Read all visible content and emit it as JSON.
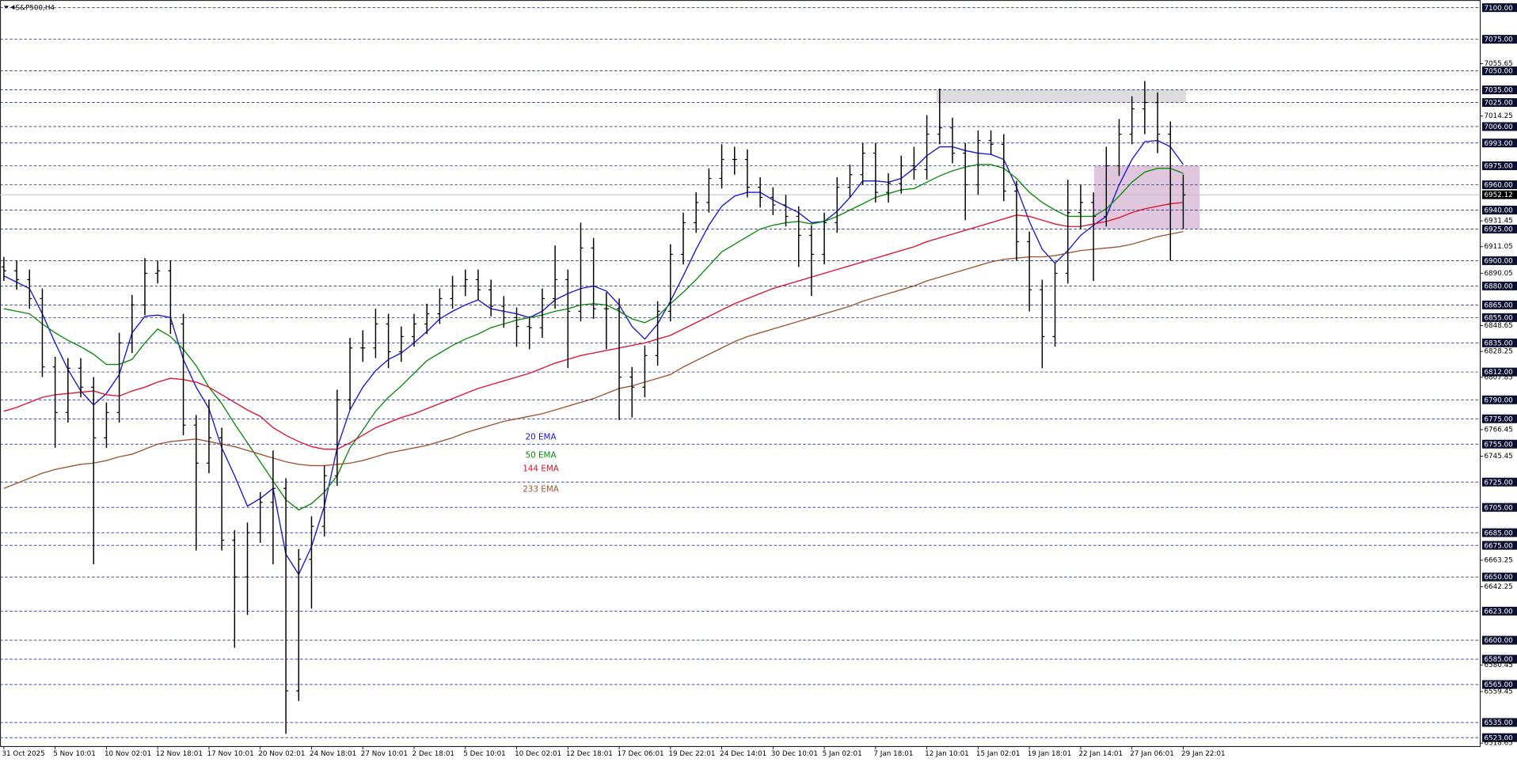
{
  "chart_data": {
    "type": "ohlc",
    "title": "S&P500,H4",
    "bar_color": "#000000",
    "categories": [
      "31 Oct 2025",
      null,
      null,
      null,
      "5 Nov 10:01",
      null,
      null,
      null,
      "10 Nov 02:01",
      null,
      null,
      null,
      "12 Nov 18:01",
      null,
      null,
      null,
      "17 Nov 10:01",
      null,
      null,
      null,
      "20 Nov 02:01",
      null,
      null,
      null,
      "24 Nov 18:01",
      null,
      null,
      null,
      "27 Nov 10:01",
      null,
      null,
      null,
      "2 Dec 18:01",
      null,
      null,
      null,
      "5 Dec 10:01",
      null,
      null,
      null,
      "10 Dec 02:01",
      null,
      null,
      null,
      "12 Dec 18:01",
      null,
      null,
      null,
      "17 Dec 06:01",
      null,
      null,
      null,
      "19 Dec 22:01",
      null,
      null,
      null,
      "24 Dec 14:01",
      null,
      null,
      null,
      "30 Dec 10:01",
      null,
      null,
      null,
      "5 Jan 02:01",
      null,
      null,
      null,
      "7 Jan 18:01",
      null,
      null,
      null,
      "12 Jan 10:01",
      null,
      null,
      null,
      "15 Jan 02:01",
      null,
      null,
      null,
      "19 Jan 18:01",
      null,
      null,
      null,
      "22 Jan 14:01",
      null,
      null,
      null,
      "27 Jan 06:01",
      null,
      null,
      null,
      "29 Jan 22:01"
    ],
    "open": [
      6895,
      6892,
      6885,
      6870,
      6816,
      6780,
      6815,
      6800,
      6760,
      6780,
      6835,
      6865,
      6890,
      6892,
      6850,
      6770,
      6740,
      6760,
      6679,
      6650,
      6685,
      6709,
      6720,
      6560,
      6664,
      6690,
      6730,
      6790,
      6831,
      6831,
      6850,
      6828,
      6840,
      6850,
      6858,
      6870,
      6880,
      6885,
      6877,
      6864,
      6855,
      6848,
      6847,
      6870,
      6885,
      6860,
      6910,
      6862,
      6862,
      6808,
      6800,
      6825,
      6860,
      6905,
      6930,
      6946,
      6965,
      6980,
      6980,
      6958,
      6950,
      6944,
      6935,
      6920,
      6905,
      6930,
      6958,
      6968,
      6985,
      6954,
      6961,
      6975,
      6972,
      7000,
      7005,
      6985,
      6960,
      6995,
      6992,
      6955,
      6915,
      6877,
      6840,
      6890,
      6938,
      6946,
      6935,
      6975,
      7000,
      7020,
      7025,
      7000,
      6960
    ],
    "high": [
      6903,
      6900,
      6893,
      6878,
      6824,
      6823,
      6823,
      6808,
      6788,
      6843,
      6873,
      6902,
      6900,
      6900,
      6858,
      6778,
      6790,
      6768,
      6687,
      6693,
      6717,
      6750,
      6728,
      6672,
      6698,
      6738,
      6798,
      6839,
      6845,
      6862,
      6858,
      6848,
      6858,
      6866,
      6878,
      6888,
      6893,
      6893,
      6885,
      6872,
      6863,
      6856,
      6878,
      6912,
      6893,
      6930,
      6918,
      6875,
      6870,
      6816,
      6833,
      6868,
      6913,
      6938,
      6954,
      6973,
      6992,
      6990,
      6988,
      6966,
      6958,
      6952,
      6943,
      6928,
      6938,
      6966,
      6976,
      6993,
      6993,
      6969,
      6983,
      6990,
      7015,
      7036,
      7013,
      6993,
      7003,
      7003,
      7000,
      6963,
      6923,
      6885,
      6898,
      6964,
      6960,
      6954,
      6990,
      7012,
      7030,
      7042,
      7033,
      7010,
      6968
    ],
    "low": [
      6884,
      6877,
      6862,
      6808,
      6752,
      6772,
      6792,
      6660,
      6752,
      6772,
      6827,
      6857,
      6882,
      6842,
      6762,
      6671,
      6732,
      6671,
      6594,
      6620,
      6677,
      6660,
      6526,
      6552,
      6625,
      6682,
      6722,
      6782,
      6820,
      6823,
      6815,
      6820,
      6832,
      6842,
      6850,
      6862,
      6872,
      6869,
      6856,
      6847,
      6832,
      6830,
      6839,
      6862,
      6815,
      6852,
      6854,
      6830,
      6774,
      6776,
      6792,
      6817,
      6852,
      6897,
      6922,
      6938,
      6957,
      6968,
      6950,
      6942,
      6936,
      6927,
      6895,
      6872,
      6897,
      6922,
      6950,
      6960,
      6946,
      6946,
      6953,
      6964,
      6964,
      6992,
      6977,
      6932,
      6952,
      6984,
      6947,
      6900,
      6860,
      6815,
      6832,
      6882,
      6925,
      6884,
      6927,
      6967,
      6992,
      7000,
      6985,
      6900,
      6925
    ],
    "close": [
      6892,
      6885,
      6870,
      6816,
      6780,
      6815,
      6800,
      6760,
      6780,
      6835,
      6865,
      6890,
      6892,
      6850,
      6770,
      6740,
      6760,
      6679,
      6650,
      6685,
      6709,
      6720,
      6560,
      6664,
      6690,
      6730,
      6790,
      6831,
      6831,
      6850,
      6828,
      6840,
      6850,
      6858,
      6870,
      6880,
      6885,
      6877,
      6864,
      6855,
      6848,
      6847,
      6870,
      6885,
      6860,
      6910,
      6862,
      6862,
      6808,
      6800,
      6825,
      6860,
      6905,
      6930,
      6946,
      6965,
      6980,
      6980,
      6958,
      6950,
      6944,
      6935,
      6920,
      6905,
      6930,
      6958,
      6968,
      6985,
      6954,
      6961,
      6975,
      6972,
      7000,
      7005,
      6985,
      6960,
      6995,
      6992,
      6955,
      6915,
      6877,
      6840,
      6890,
      6938,
      6946,
      6935,
      6975,
      7000,
      7020,
      7025,
      7000,
      6960,
      6952
    ],
    "series": [
      {
        "name": "20 EMA",
        "color": "#1414d8",
        "values": [
          6888,
          6883,
          6878,
          6858,
          6835,
          6814,
          6797,
          6786,
          6795,
          6810,
          6843,
          6856,
          6857,
          6855,
          6822,
          6800,
          6783,
          6752,
          6730,
          6706,
          6712,
          6720,
          6668,
          6652,
          6674,
          6706,
          6752,
          6782,
          6800,
          6813,
          6822,
          6827,
          6835,
          6844,
          6854,
          6860,
          6865,
          6869,
          6862,
          6860,
          6858,
          6855,
          6860,
          6869,
          6874,
          6878,
          6880,
          6876,
          6865,
          6848,
          6838,
          6850,
          6868,
          6888,
          6909,
          6928,
          6943,
          6951,
          6954,
          6954,
          6948,
          6943,
          6938,
          6930,
          6931,
          6939,
          6950,
          6963,
          6963,
          6962,
          6965,
          6973,
          6983,
          6990,
          6990,
          6987,
          6985,
          6984,
          6980,
          6958,
          6931,
          6909,
          6898,
          6908,
          6920,
          6928,
          6935,
          6960,
          6980,
          6994,
          6995,
          6990,
          6976
        ]
      },
      {
        "name": "50 EMA",
        "color": "#0a8a0a",
        "values": [
          6862,
          6860,
          6858,
          6850,
          6843,
          6837,
          6832,
          6826,
          6818,
          6818,
          6822,
          6835,
          6846,
          6840,
          6830,
          6817,
          6800,
          6787,
          6771,
          6756,
          6741,
          6726,
          6711,
          6703,
          6708,
          6717,
          6730,
          6752,
          6766,
          6781,
          6792,
          6801,
          6811,
          6821,
          6827,
          6833,
          6838,
          6842,
          6847,
          6850,
          6853,
          6855,
          6857,
          6860,
          6862,
          6865,
          6866,
          6865,
          6860,
          6854,
          6851,
          6856,
          6866,
          6875,
          6885,
          6896,
          6907,
          6913,
          6919,
          6925,
          6928,
          6930,
          6931,
          6929,
          6931,
          6935,
          6940,
          6945,
          6950,
          6953,
          6956,
          6957,
          6962,
          6967,
          6971,
          6974,
          6976,
          6976,
          6973,
          6965,
          6954,
          6946,
          6940,
          6935,
          6935,
          6935,
          6941,
          6951,
          6962,
          6970,
          6973,
          6973,
          6969
        ]
      },
      {
        "name": "144 EMA",
        "color": "#e0102e",
        "values": [
          6781,
          6784,
          6788,
          6792,
          6794,
          6795,
          6796,
          6797,
          6794,
          6793,
          6797,
          6800,
          6804,
          6807,
          6806,
          6804,
          6800,
          6794,
          6788,
          6782,
          6777,
          6768,
          6762,
          6757,
          6753,
          6751,
          6751,
          6756,
          6762,
          6768,
          6772,
          6776,
          6779,
          6783,
          6787,
          6791,
          6795,
          6799,
          6802,
          6805,
          6808,
          6811,
          6815,
          6819,
          6822,
          6825,
          6827,
          6829,
          6831,
          6833,
          6835,
          6838,
          6841,
          6846,
          6851,
          6856,
          6861,
          6866,
          6870,
          6874,
          6878,
          6881,
          6884,
          6887,
          6890,
          6893,
          6896,
          6899,
          6902,
          6905,
          6908,
          6911,
          6915,
          6918,
          6921,
          6924,
          6927,
          6930,
          6933,
          6936,
          6935,
          6932,
          6929,
          6927,
          6927,
          6929,
          6931,
          6934,
          6938,
          6941,
          6943,
          6945,
          6946
        ]
      },
      {
        "name": "233 EMA",
        "color": "#a0522d",
        "values": [
          6720,
          6724,
          6728,
          6732,
          6735,
          6737,
          6739,
          6740,
          6742,
          6745,
          6747,
          6751,
          6755,
          6757,
          6758,
          6759,
          6757,
          6755,
          6753,
          6750,
          6747,
          6744,
          6741,
          6739,
          6738,
          6738,
          6739,
          6740,
          6742,
          6745,
          6748,
          6750,
          6752,
          6754,
          6757,
          6760,
          6764,
          6767,
          6770,
          6773,
          6775,
          6777,
          6779,
          6782,
          6785,
          6788,
          6791,
          6795,
          6799,
          6801,
          6804,
          6807,
          6810,
          6816,
          6821,
          6826,
          6831,
          6836,
          6840,
          6843,
          6846,
          6849,
          6852,
          6855,
          6858,
          6861,
          6864,
          6868,
          6871,
          6874,
          6877,
          6880,
          6884,
          6887,
          6890,
          6893,
          6896,
          6899,
          6901,
          6902,
          6903,
          6903,
          6904,
          6906,
          6908,
          6909,
          6910,
          6911,
          6913,
          6916,
          6919,
          6921,
          6923
        ]
      }
    ],
    "ylim": [
      6516,
      7106
    ],
    "yticks": [
      7055.65,
      7014.25,
      6931.45,
      6911.05,
      6890.05,
      6848.65,
      6828.25,
      6807.85,
      6766.45,
      6745.45,
      6663.25,
      6642.25,
      6580.45,
      6559.45,
      6518.65
    ],
    "levels": [
      {
        "value": 7100,
        "label": "7100.00"
      },
      {
        "value": 7075,
        "label": "7075.00"
      },
      {
        "value": 7050,
        "label": "7050.00"
      },
      {
        "value": 7035,
        "label": "7035.00"
      },
      {
        "value": 7025,
        "label": "7025.00"
      },
      {
        "value": 7006,
        "label": "7006.00"
      },
      {
        "value": 6993,
        "label": "6993.00"
      },
      {
        "value": 6975,
        "label": "6975.00"
      },
      {
        "value": 6960,
        "label": "6960.00"
      },
      {
        "value": 6940,
        "label": "6940.00"
      },
      {
        "value": 6925,
        "label": "6925.00"
      },
      {
        "value": 6900,
        "label": "6900.00"
      },
      {
        "value": 6880,
        "label": "6880.00"
      },
      {
        "value": 6865,
        "label": "6865.00"
      },
      {
        "value": 6855,
        "label": "6855.00"
      },
      {
        "value": 6835,
        "label": "6835.00"
      },
      {
        "value": 6812,
        "label": "6812.00"
      },
      {
        "value": 6790,
        "label": "6790.00"
      },
      {
        "value": 6775,
        "label": "6775.00"
      },
      {
        "value": 6755,
        "label": "6755.00"
      },
      {
        "value": 6725,
        "label": "6725.00"
      },
      {
        "value": 6705,
        "label": "6705.00"
      },
      {
        "value": 6685,
        "label": "6685.00"
      },
      {
        "value": 6675,
        "label": "6675.00"
      },
      {
        "value": 6650,
        "label": "6650.00"
      },
      {
        "value": 6623,
        "label": "6623.00"
      },
      {
        "value": 6600,
        "label": "6600.00"
      },
      {
        "value": 6585,
        "label": "6585.00"
      },
      {
        "value": 6565,
        "label": "6565.00"
      },
      {
        "value": 6535,
        "label": "6535.00"
      },
      {
        "value": 6523,
        "label": "6523.00"
      }
    ],
    "levels_color": "#24348a",
    "last_price": 6952.12,
    "zones": [
      {
        "from": 7025,
        "to": 7035,
        "color": "#d6d6d6"
      },
      {
        "from": 6925,
        "to": 6975,
        "color": "#d9bcd6"
      }
    ]
  }
}
